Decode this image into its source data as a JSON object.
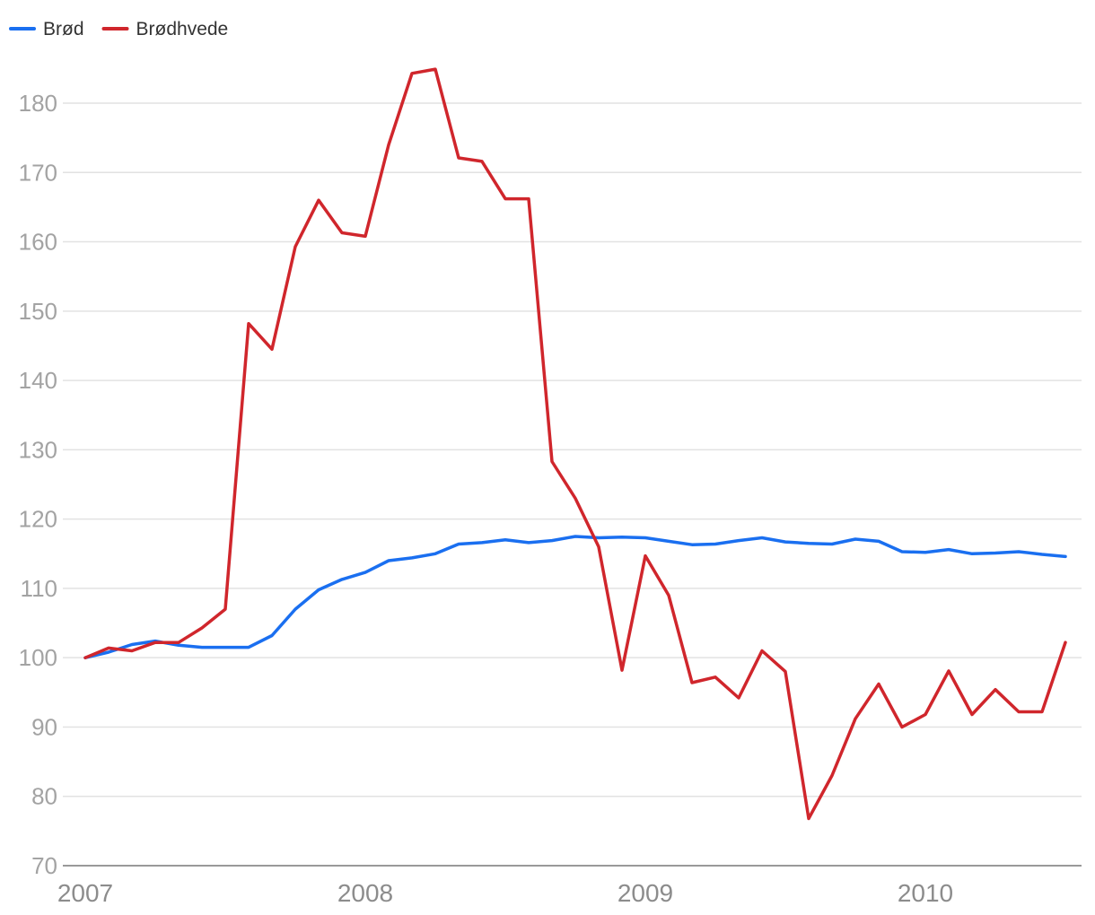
{
  "chart_data": {
    "type": "line",
    "title": "",
    "xlabel": "",
    "ylabel": "",
    "ylim": [
      70,
      185
    ],
    "yticks": [
      70,
      80,
      90,
      100,
      110,
      120,
      130,
      140,
      150,
      160,
      170,
      180
    ],
    "xticks": [
      "2007",
      "2008",
      "2009",
      "2010"
    ],
    "grid": true,
    "legend_position": "top-left",
    "x_start": "2007-01",
    "x_step": "month",
    "series": [
      {
        "name": "Brød",
        "color": "#1a6ff0",
        "values": [
          100,
          100.8,
          101.9,
          102.4,
          101.8,
          101.5,
          101.5,
          101.5,
          103.2,
          107,
          109.8,
          111.3,
          112.3,
          114,
          114.4,
          115,
          116.4,
          116.6,
          117,
          116.6,
          116.9,
          117.5,
          117.3,
          117.4,
          117.3,
          116.8,
          116.3,
          116.4,
          116.9,
          117.3,
          116.7,
          116.5,
          116.4,
          117.1,
          116.8,
          115.3,
          115.2,
          115.6,
          115,
          115.1,
          115.3,
          114.9,
          114.6
        ]
      },
      {
        "name": "Brødhvede",
        "color": "#d0262c",
        "values": [
          100,
          101.4,
          101,
          102.2,
          102.2,
          104.3,
          107,
          148.2,
          144.5,
          159.3,
          166,
          161.3,
          160.8,
          174,
          184.3,
          184.9,
          172.1,
          171.6,
          166.2,
          166.2,
          128.3,
          123,
          116,
          98.2,
          114.7,
          109,
          96.4,
          97.2,
          94.2,
          101,
          98,
          76.8,
          83,
          91.2,
          96.2,
          90,
          91.8,
          98.1,
          91.8,
          95.4,
          92.2,
          92.2,
          102.2
        ]
      }
    ]
  }
}
